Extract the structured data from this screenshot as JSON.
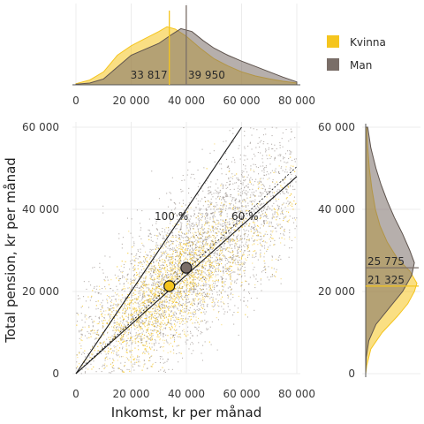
{
  "chart_data": {
    "type": "scatter",
    "xlabel": "Inkomst, kr per månad",
    "ylabel": "Total pension, kr per månad",
    "xlim": [
      0,
      80000
    ],
    "ylim": [
      0,
      60000
    ],
    "x_ticks": [
      "0",
      "20 000",
      "40 000",
      "60 000",
      "80 000"
    ],
    "x_tick_values": [
      0,
      20000,
      40000,
      60000,
      80000
    ],
    "y_ticks": [
      "0",
      "20 000",
      "40 000",
      "60 000"
    ],
    "y_tick_values": [
      0,
      20000,
      40000,
      60000
    ],
    "grid": true,
    "legend_position": "top-right",
    "series": [
      {
        "name": "Kvinna",
        "color": "#f5c51e",
        "mean_income": 33817,
        "mean_pension": 21325,
        "mean_income_label": "33 817",
        "mean_pension_label": "21 325",
        "income_density": [
          [
            0,
            0.02
          ],
          [
            5000,
            0.08
          ],
          [
            10000,
            0.22
          ],
          [
            15000,
            0.5
          ],
          [
            20000,
            0.66
          ],
          [
            25000,
            0.78
          ],
          [
            30000,
            0.9
          ],
          [
            33000,
            0.98
          ],
          [
            36000,
            0.94
          ],
          [
            40000,
            0.82
          ],
          [
            45000,
            0.62
          ],
          [
            50000,
            0.44
          ],
          [
            55000,
            0.32
          ],
          [
            60000,
            0.22
          ],
          [
            65000,
            0.15
          ],
          [
            70000,
            0.1
          ],
          [
            75000,
            0.06
          ],
          [
            80000,
            0.03
          ]
        ],
        "pension_density": [
          [
            0,
            0.0
          ],
          [
            2000,
            0.02
          ],
          [
            6000,
            0.1
          ],
          [
            10000,
            0.32
          ],
          [
            14000,
            0.62
          ],
          [
            17000,
            0.82
          ],
          [
            20000,
            0.95
          ],
          [
            22000,
            1.0
          ],
          [
            25000,
            0.86
          ],
          [
            28000,
            0.62
          ],
          [
            32000,
            0.42
          ],
          [
            36000,
            0.28
          ],
          [
            40000,
            0.19
          ],
          [
            45000,
            0.12
          ],
          [
            50000,
            0.07
          ],
          [
            55000,
            0.04
          ],
          [
            60000,
            0.02
          ]
        ]
      },
      {
        "name": "Man",
        "color": "#7a6e68",
        "mean_income": 39950,
        "mean_pension": 25775,
        "mean_income_label": "39 950",
        "mean_pension_label": "25 775",
        "income_density": [
          [
            0,
            0.01
          ],
          [
            5000,
            0.03
          ],
          [
            10000,
            0.1
          ],
          [
            15000,
            0.3
          ],
          [
            20000,
            0.5
          ],
          [
            25000,
            0.6
          ],
          [
            30000,
            0.7
          ],
          [
            35000,
            0.86
          ],
          [
            38000,
            0.95
          ],
          [
            42000,
            0.9
          ],
          [
            46000,
            0.75
          ],
          [
            50000,
            0.62
          ],
          [
            55000,
            0.5
          ],
          [
            60000,
            0.4
          ],
          [
            65000,
            0.31
          ],
          [
            70000,
            0.22
          ],
          [
            75000,
            0.13
          ],
          [
            80000,
            0.05
          ]
        ],
        "pension_density": [
          [
            0,
            0.0
          ],
          [
            4000,
            0.01
          ],
          [
            8000,
            0.06
          ],
          [
            12000,
            0.2
          ],
          [
            16000,
            0.46
          ],
          [
            20000,
            0.72
          ],
          [
            24000,
            0.9
          ],
          [
            27000,
            0.95
          ],
          [
            30000,
            0.86
          ],
          [
            34000,
            0.72
          ],
          [
            38000,
            0.56
          ],
          [
            42000,
            0.42
          ],
          [
            46000,
            0.3
          ],
          [
            50000,
            0.2
          ],
          [
            55000,
            0.1
          ],
          [
            60000,
            0.04
          ]
        ]
      }
    ],
    "reference_lines": [
      {
        "label": "100 %",
        "slope": 1.0
      },
      {
        "label": "60 %",
        "slope": 0.6
      }
    ],
    "fit_line_slope": 0.63
  }
}
